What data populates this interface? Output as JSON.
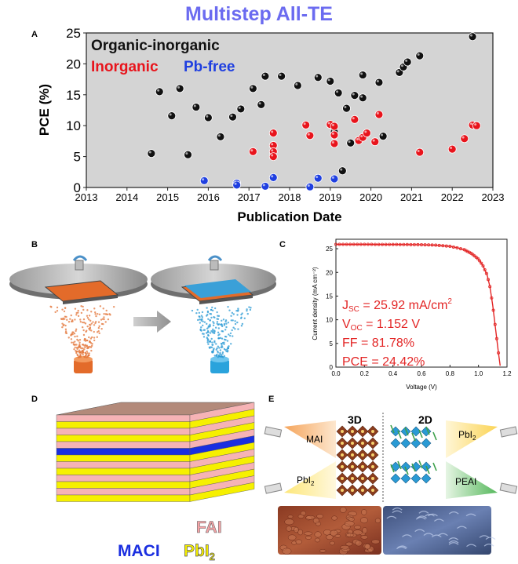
{
  "figure_title": "Multistep All-TE",
  "panels": {
    "A": "A",
    "B": "B",
    "C": "C",
    "D": "D",
    "E": "E"
  },
  "colors": {
    "organic_inorganic": "#111111",
    "inorganic": "#e8141c",
    "pb_free": "#1f3fe0",
    "title": "#6b6bf0",
    "jv": "#e32626"
  },
  "chart_data": [
    {
      "panel": "A",
      "type": "scatter",
      "title": "",
      "xlabel": "Publication Date",
      "ylabel": "PCE (%)",
      "xlim": [
        2013,
        2023
      ],
      "ylim": [
        0,
        25
      ],
      "xticks": [
        2013,
        2014,
        2015,
        2016,
        2017,
        2018,
        2019,
        2020,
        2021,
        2022,
        2023
      ],
      "yticks": [
        0,
        5,
        10,
        15,
        20,
        25
      ],
      "legend_placement": "top-left",
      "series": [
        {
          "name": "Organic-inorganic",
          "color": "#111111",
          "points": [
            [
              2014.6,
              5.5
            ],
            [
              2014.8,
              15.5
            ],
            [
              2015.1,
              11.6
            ],
            [
              2015.3,
              16.0
            ],
            [
              2015.5,
              5.3
            ],
            [
              2015.7,
              13.0
            ],
            [
              2016.0,
              11.3
            ],
            [
              2016.3,
              8.2
            ],
            [
              2016.6,
              11.4
            ],
            [
              2016.8,
              12.7
            ],
            [
              2017.1,
              16.0
            ],
            [
              2017.3,
              13.4
            ],
            [
              2017.4,
              18.0
            ],
            [
              2017.8,
              18.0
            ],
            [
              2018.2,
              16.5
            ],
            [
              2018.7,
              17.8
            ],
            [
              2019.0,
              17.2
            ],
            [
              2019.1,
              9.0
            ],
            [
              2019.2,
              15.3
            ],
            [
              2019.3,
              2.7
            ],
            [
              2019.4,
              12.8
            ],
            [
              2019.5,
              7.2
            ],
            [
              2019.6,
              14.9
            ],
            [
              2019.8,
              18.2
            ],
            [
              2019.8,
              14.5
            ],
            [
              2020.2,
              17.0
            ],
            [
              2020.3,
              8.3
            ],
            [
              2020.7,
              18.6
            ],
            [
              2020.8,
              19.5
            ],
            [
              2020.9,
              20.3
            ],
            [
              2021.2,
              21.3
            ],
            [
              2022.5,
              24.4
            ]
          ]
        },
        {
          "name": "Inorganic",
          "color": "#e8141c",
          "points": [
            [
              2017.1,
              5.8
            ],
            [
              2017.6,
              8.8
            ],
            [
              2017.6,
              6.8
            ],
            [
              2017.6,
              5.8
            ],
            [
              2017.6,
              5.0
            ],
            [
              2018.4,
              10.1
            ],
            [
              2018.5,
              8.4
            ],
            [
              2019.0,
              10.2
            ],
            [
              2019.1,
              9.9
            ],
            [
              2019.1,
              8.5
            ],
            [
              2019.1,
              7.1
            ],
            [
              2019.6,
              11.0
            ],
            [
              2019.7,
              7.6
            ],
            [
              2019.8,
              8.1
            ],
            [
              2019.9,
              8.8
            ],
            [
              2020.2,
              11.8
            ],
            [
              2020.1,
              7.4
            ],
            [
              2021.2,
              5.7
            ],
            [
              2022.0,
              6.2
            ],
            [
              2022.3,
              7.9
            ],
            [
              2022.5,
              10.1
            ],
            [
              2022.6,
              10.0
            ]
          ]
        },
        {
          "name": "Pb-free",
          "color": "#1f3fe0",
          "points": [
            [
              2015.9,
              1.1
            ],
            [
              2016.7,
              0.7
            ],
            [
              2016.7,
              0.4
            ],
            [
              2017.4,
              0.2
            ],
            [
              2017.6,
              1.6
            ],
            [
              2018.5,
              0.1
            ],
            [
              2018.7,
              1.5
            ],
            [
              2019.1,
              1.4
            ]
          ]
        }
      ]
    },
    {
      "panel": "C",
      "type": "line",
      "title": "",
      "xlabel": "Voltage (V)",
      "ylabel": "Current density (mA cm⁻²)",
      "xlim": [
        0.0,
        1.2
      ],
      "ylim": [
        0,
        27
      ],
      "xticks": [
        "0.0",
        "0.2",
        "0.4",
        "0.6",
        "0.8",
        "1.0",
        "1.2"
      ],
      "yticks": [
        0,
        5,
        10,
        15,
        20,
        25
      ],
      "series": [
        {
          "name": "",
          "color": "#e32626",
          "points": [
            [
              0.0,
              25.92
            ],
            [
              0.2,
              25.92
            ],
            [
              0.4,
              25.9
            ],
            [
              0.6,
              25.85
            ],
            [
              0.7,
              25.75
            ],
            [
              0.8,
              25.5
            ],
            [
              0.85,
              25.2
            ],
            [
              0.9,
              24.8
            ],
            [
              0.95,
              24.0
            ],
            [
              1.0,
              22.8
            ],
            [
              1.03,
              21.5
            ],
            [
              1.06,
              19.5
            ],
            [
              1.08,
              17.0
            ],
            [
              1.1,
              13.0
            ],
            [
              1.12,
              8.0
            ],
            [
              1.14,
              3.0
            ],
            [
              1.152,
              0.3
            ]
          ]
        }
      ],
      "annotation": {
        "jsc_label": "J",
        "jsc_sub": "SC",
        "jsc_value": " = 25.92 mA/cm",
        "jsc_sup": "2",
        "voc_label": "V",
        "voc_sub": "OC",
        "voc_value": " = 1.152 V",
        "ff": "FF = 81.78%",
        "pce": "PCE = 24.42%"
      }
    }
  ],
  "panel_D": {
    "fai": "FAI",
    "maci": "MACI",
    "pbi2": "PbI",
    "pbi2_sub": "2"
  },
  "panel_E": {
    "label_3d": "3D",
    "label_2d": "2D",
    "mai": "MAI",
    "pbi2_left": "PbI",
    "pbi2_left_sub": "2",
    "pbi2_right": "PbI",
    "pbi2_right_sub": "2",
    "peai": "PEAI"
  }
}
